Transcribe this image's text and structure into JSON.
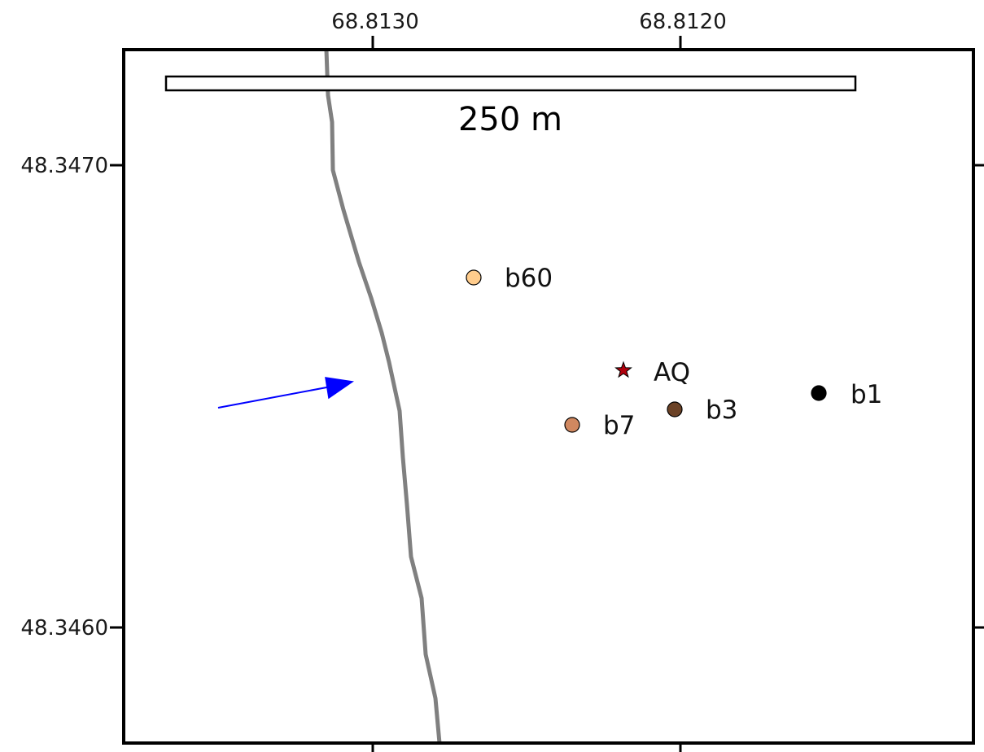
{
  "axes": {
    "x_ticks": [
      "68.8130",
      "68.8120"
    ],
    "y_ticks": [
      "48.3470",
      "48.3460"
    ]
  },
  "scale_bar": {
    "label": "250 m"
  },
  "points": [
    {
      "id": "b60",
      "label": "b60",
      "color": "#FFCC8C"
    },
    {
      "id": "AQ",
      "label": "AQ",
      "color": "#B0000C"
    },
    {
      "id": "b1",
      "label": "b1",
      "color": "#000000"
    },
    {
      "id": "b3",
      "label": "b3",
      "color": "#6B4226"
    },
    {
      "id": "b7",
      "label": "b7",
      "color": "#D08860"
    }
  ],
  "colors": {
    "river": "#808080",
    "arrow": "#0000FF",
    "frame": "#000000"
  }
}
